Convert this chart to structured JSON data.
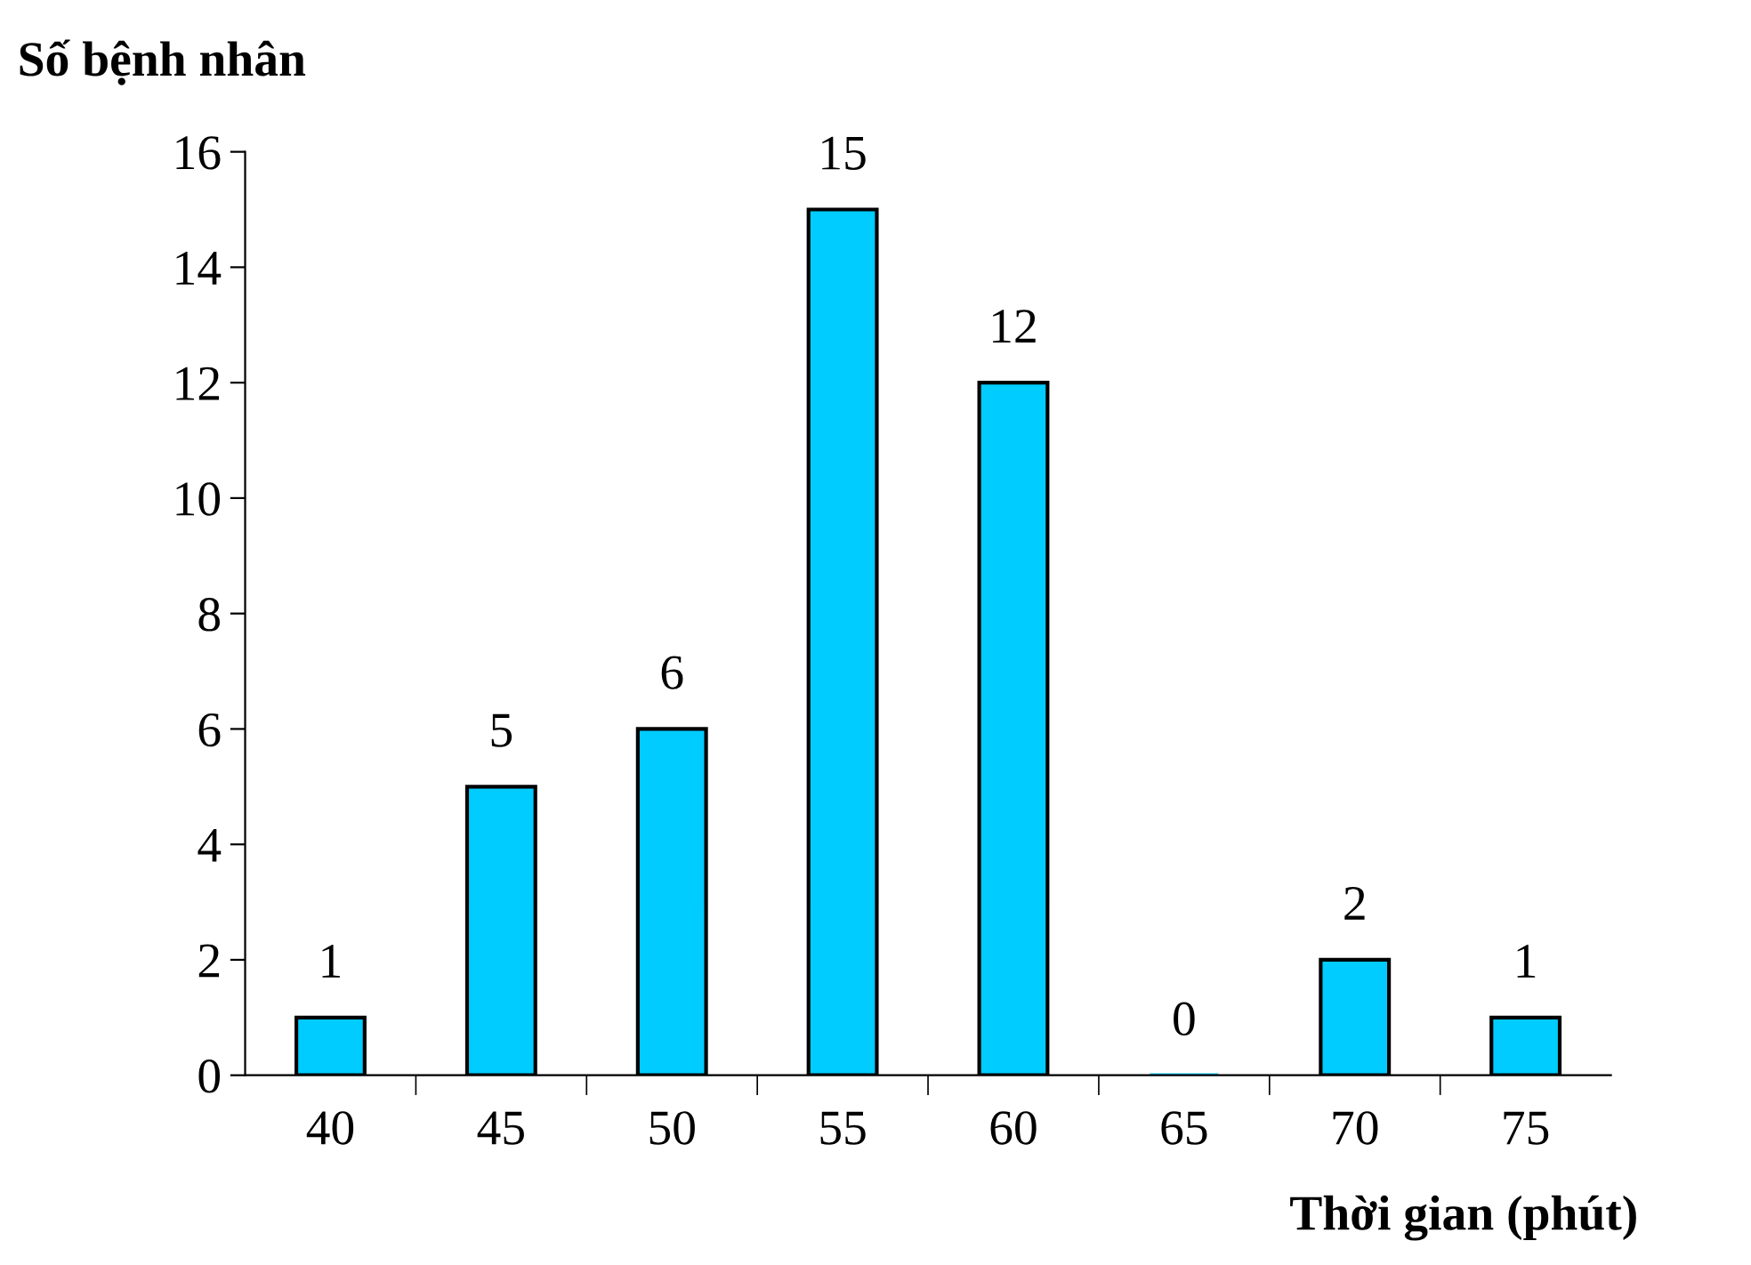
{
  "chart_data": {
    "type": "bar",
    "xlabel": "Thời gian (phút)",
    "ylabel": "Số bệnh nhân",
    "categories": [
      "40",
      "45",
      "50",
      "55",
      "60",
      "65",
      "70",
      "75"
    ],
    "values": [
      1,
      5,
      6,
      15,
      12,
      0,
      2,
      1
    ],
    "color": "#00ccff",
    "ylim": [
      0,
      16
    ],
    "yticks": [
      0,
      2,
      4,
      6,
      8,
      10,
      12,
      14,
      16
    ],
    "data_labels": true,
    "grid": false,
    "legend": false
  }
}
